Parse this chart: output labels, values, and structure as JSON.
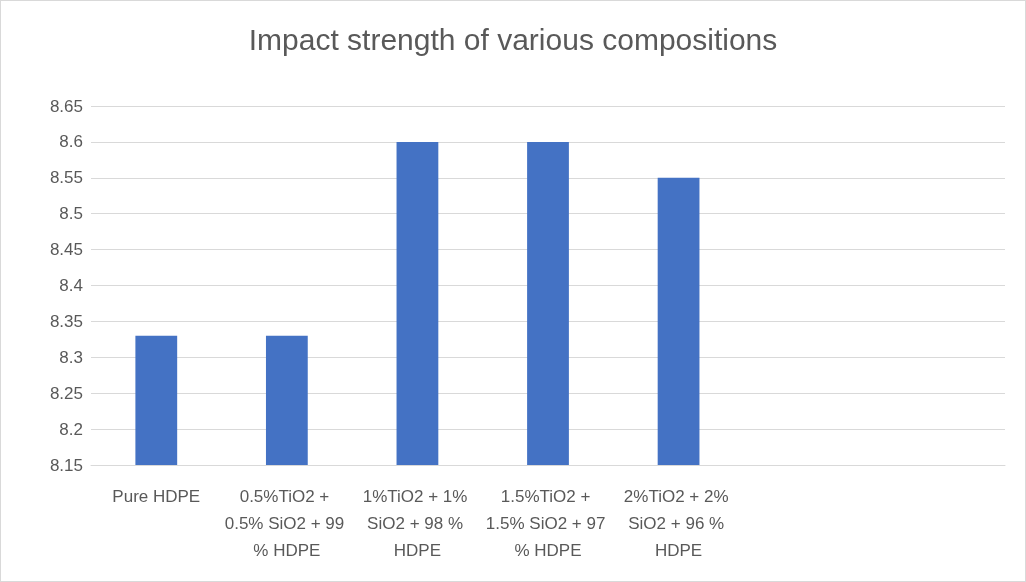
{
  "chart_data": {
    "type": "bar",
    "title": "Impact strength of various compositions",
    "categories": [
      "Pure HDPE",
      "0.5%TiO2 + 0.5% SiO2 + 99 % HDPE",
      "1%TiO2 + 1% SiO2 + 98 % HDPE",
      "1.5%TiO2 + 1.5% SiO2 + 97 % HDPE",
      "2%TiO2 + 2% SiO2 + 96 % HDPE",
      null,
      null
    ],
    "values": [
      8.33,
      8.33,
      8.6,
      8.6,
      8.55,
      null,
      null
    ],
    "color": "#4472c4",
    "ylim": [
      8.15,
      8.65
    ],
    "yticks": [
      8.15,
      8.2,
      8.25,
      8.3,
      8.35,
      8.4,
      8.45,
      8.5,
      8.55,
      8.6,
      8.65
    ],
    "grid": "y"
  }
}
